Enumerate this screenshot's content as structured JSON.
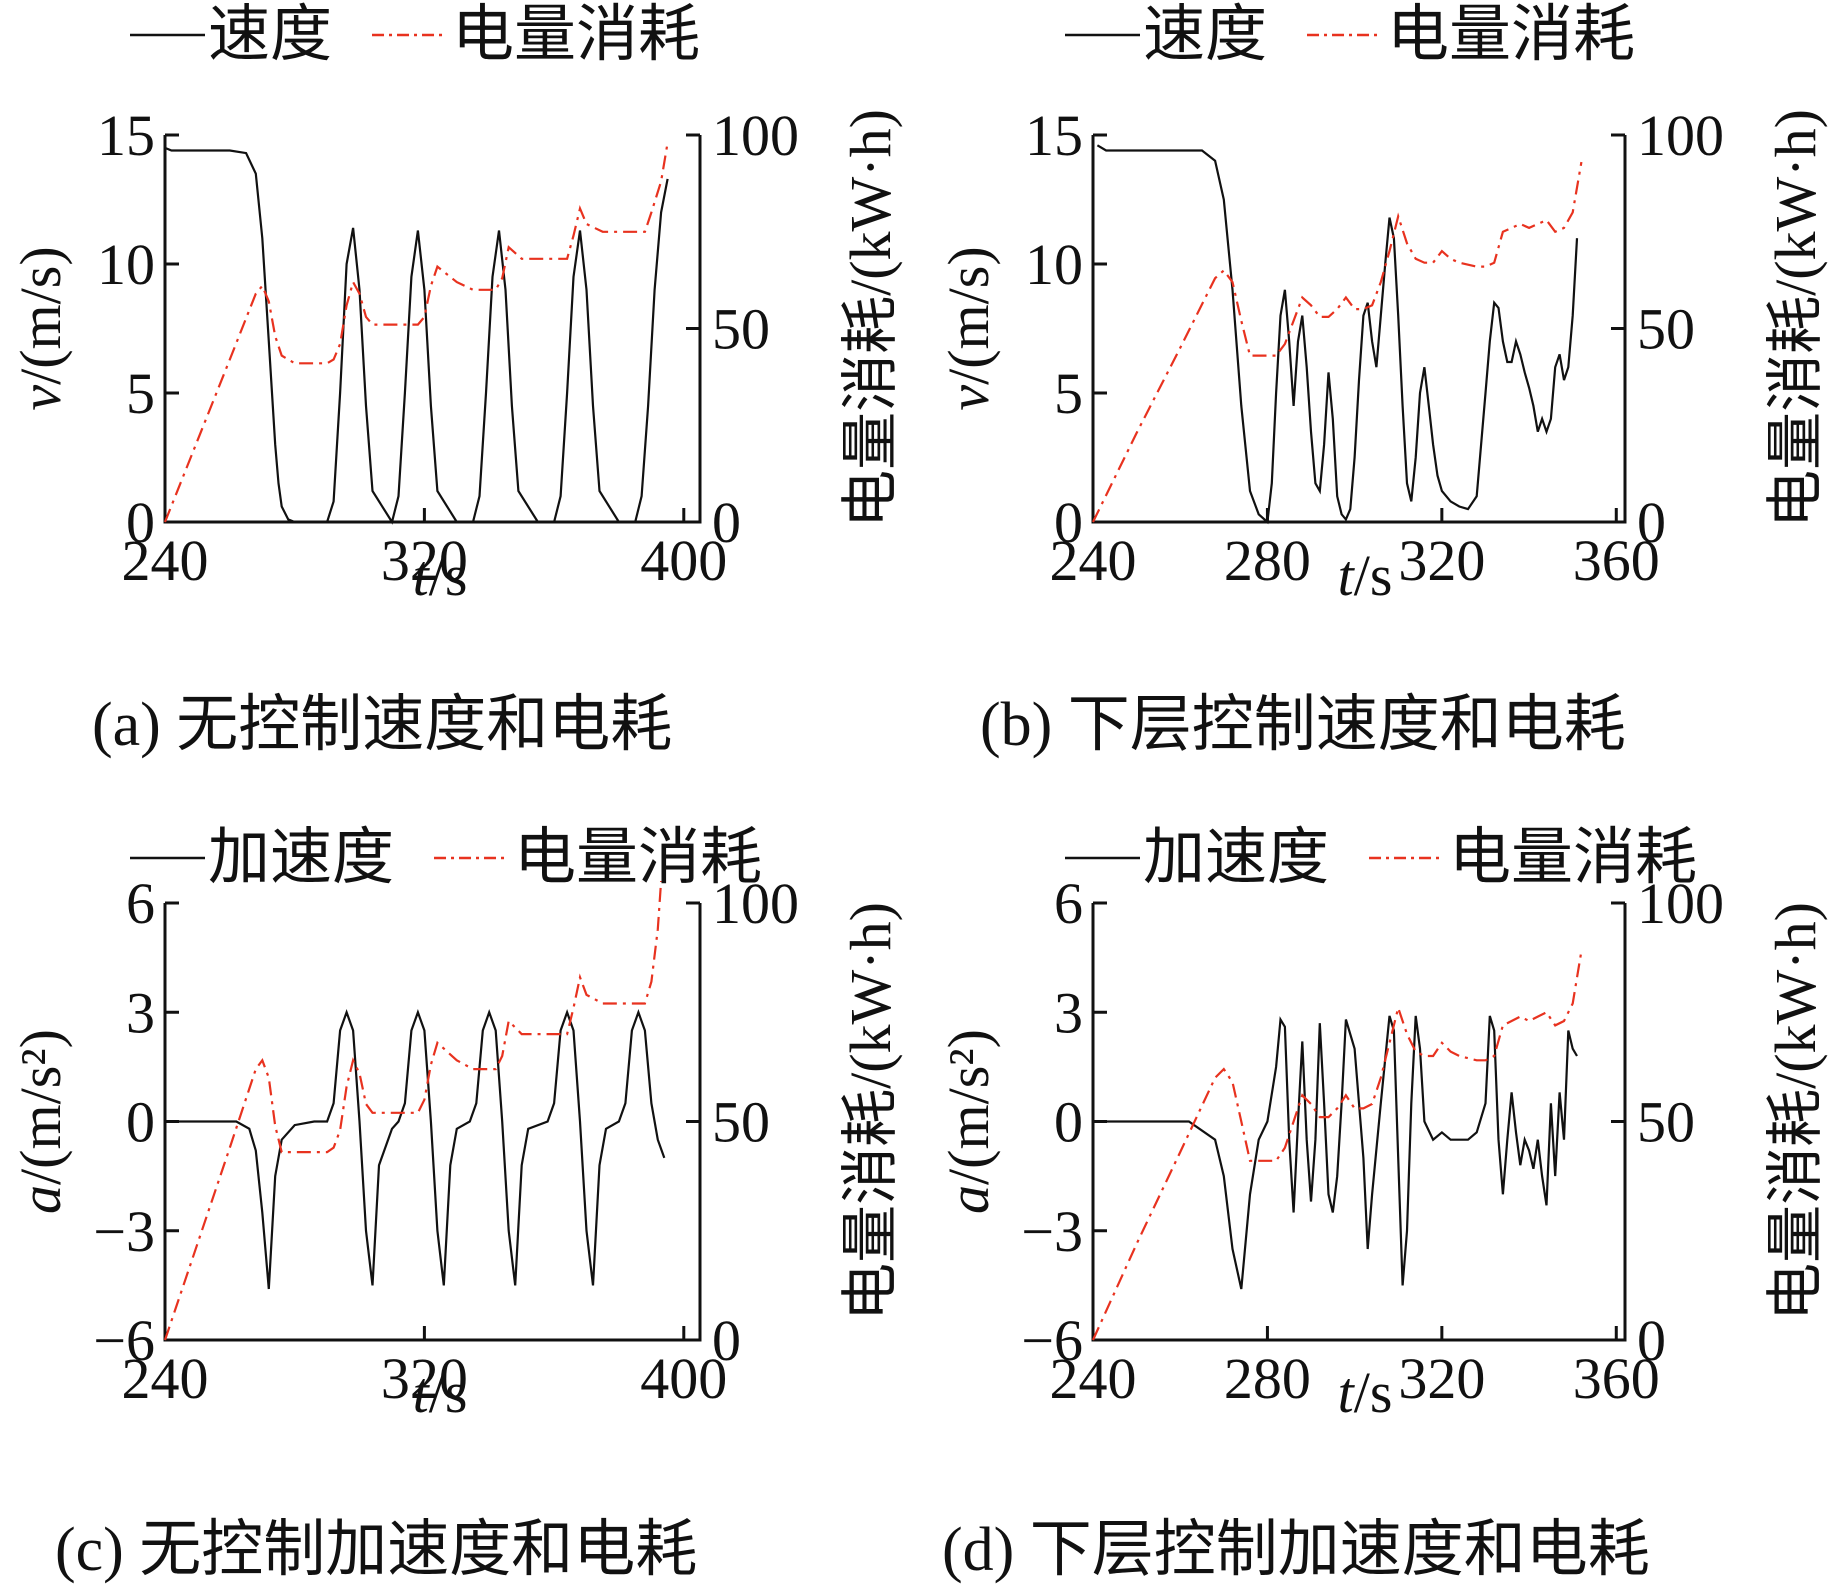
{
  "colors": {
    "speed": "#111111",
    "energy": "#e8321f"
  },
  "chart_data": [
    {
      "type": "line",
      "panel": "a",
      "caption": "(a) 无控制速度和电耗",
      "legend": [
        "速度",
        "电量消耗"
      ],
      "xlabel_var": "t",
      "xlabel_unit": "/s",
      "ylabel_var": "v",
      "ylabel_unit": "/(m/s)",
      "y2label": "电量消耗/(kW·h)",
      "xlim": [
        240,
        405
      ],
      "xticks": [
        240,
        320,
        400
      ],
      "ylim": [
        0,
        15
      ],
      "yticks": [
        0,
        5,
        10,
        15
      ],
      "y2lim": [
        0,
        100
      ],
      "y2ticks": [
        0,
        50,
        100
      ],
      "series": [
        {
          "name": "速度",
          "axis": "left",
          "x": [
            240,
            242,
            250,
            260,
            265,
            268,
            270,
            272,
            274,
            275,
            276,
            278,
            280,
            282,
            285,
            290,
            292,
            294,
            296,
            298,
            300,
            302,
            304,
            310,
            312,
            314,
            316,
            318,
            320,
            322,
            324,
            330,
            335,
            337,
            339,
            341,
            343,
            345,
            347,
            349,
            355,
            360,
            362,
            364,
            366,
            368,
            370,
            372,
            374,
            380,
            385,
            387,
            389,
            391,
            393,
            395
          ],
          "y": [
            14.5,
            14.4,
            14.4,
            14.4,
            14.3,
            13.5,
            11,
            7,
            3,
            1.5,
            0.6,
            0.1,
            0,
            0,
            0,
            0,
            0.8,
            5,
            10,
            11.4,
            9,
            4.5,
            1.2,
            0,
            1,
            5,
            9.5,
            11.3,
            9,
            4.5,
            1.2,
            0,
            0,
            1,
            5,
            9.5,
            11.3,
            9,
            4.5,
            1.2,
            0,
            0,
            1,
            5,
            9.5,
            11.3,
            9,
            4.5,
            1.2,
            0,
            0,
            1,
            4.5,
            9,
            12,
            13.3
          ]
        },
        {
          "name": "电量消耗",
          "axis": "right",
          "x": [
            240,
            250,
            260,
            268,
            270,
            272,
            274,
            276,
            280,
            285,
            288,
            290,
            292,
            294,
            296,
            298,
            300,
            302,
            304,
            310,
            315,
            318,
            320,
            322,
            324,
            330,
            335,
            340,
            342,
            344,
            346,
            350,
            355,
            360,
            364,
            366,
            368,
            370,
            375,
            380,
            385,
            388,
            390,
            393,
            395
          ],
          "y": [
            0,
            21,
            42,
            59,
            61,
            57,
            48,
            43,
            41,
            41,
            41,
            41,
            42,
            46,
            56,
            62,
            59,
            53,
            51,
            51,
            51,
            51,
            53,
            61,
            66,
            62,
            60,
            60,
            60,
            63,
            71,
            68,
            68,
            68,
            68,
            74,
            81,
            77,
            75,
            75,
            75,
            75,
            80,
            88,
            98
          ]
        }
      ]
    },
    {
      "type": "line",
      "panel": "b",
      "caption": "(b) 下层控制速度和电耗",
      "legend": [
        "速度",
        "电量消耗"
      ],
      "xlabel_var": "t",
      "xlabel_unit": "/s",
      "ylabel_var": "v",
      "ylabel_unit": "/(m/s)",
      "y2label": "电量消耗/(kW·h)",
      "xlim": [
        240,
        362
      ],
      "xticks": [
        240,
        280,
        320,
        360
      ],
      "ylim": [
        0,
        15
      ],
      "yticks": [
        0,
        5,
        10,
        15
      ],
      "y2lim": [
        0,
        100
      ],
      "y2ticks": [
        0,
        50,
        100
      ],
      "series": [
        {
          "name": "速度",
          "axis": "left",
          "x": [
            241,
            243,
            250,
            260,
            265,
            268,
            270,
            272,
            274,
            276,
            278,
            280,
            281,
            282,
            283,
            284,
            285,
            286,
            287,
            288,
            289,
            290,
            291,
            292,
            293,
            294,
            295,
            296,
            297,
            298,
            299,
            300,
            301,
            302,
            303,
            304,
            305,
            306,
            307,
            308,
            309,
            310,
            311,
            312,
            313,
            314,
            315,
            316,
            317,
            318,
            319,
            320,
            322,
            324,
            326,
            328,
            330,
            331,
            332,
            333,
            334,
            335,
            336,
            337,
            338,
            339,
            340,
            341,
            342,
            343,
            344,
            345,
            346,
            347,
            348,
            349,
            350,
            351
          ],
          "y": [
            14.6,
            14.4,
            14.4,
            14.4,
            14.4,
            14,
            12.5,
            9,
            4.5,
            1.2,
            0.3,
            0,
            1.5,
            5,
            8,
            9,
            7,
            4.5,
            7,
            8,
            6,
            3.5,
            1.5,
            1.2,
            3,
            5.8,
            4,
            1,
            0.3,
            0.1,
            0.5,
            2.5,
            5.5,
            8,
            8.5,
            7,
            6,
            8,
            10,
            11.8,
            11,
            8,
            4.5,
            1.5,
            0.8,
            2.5,
            5,
            6,
            4.5,
            3,
            1.8,
            1.2,
            0.8,
            0.6,
            0.5,
            1,
            5,
            7,
            8.5,
            8.3,
            7,
            6.2,
            6.2,
            7,
            6.5,
            5.8,
            5.2,
            4.5,
            3.5,
            4,
            3.5,
            4,
            6,
            6.5,
            5.5,
            6,
            8,
            11
          ]
        },
        {
          "name": "电量消耗",
          "axis": "right",
          "x": [
            240,
            250,
            260,
            268,
            270,
            272,
            274,
            276,
            278,
            282,
            284,
            286,
            288,
            290,
            292,
            294,
            296,
            298,
            300,
            302,
            304,
            306,
            308,
            310,
            312,
            314,
            316,
            318,
            320,
            322,
            324,
            328,
            330,
            332,
            334,
            336,
            338,
            340,
            342,
            344,
            346,
            348,
            350,
            352
          ],
          "y": [
            0,
            23,
            45,
            63,
            65,
            62,
            52,
            43,
            43,
            43,
            46,
            52,
            58,
            56,
            53,
            53,
            55,
            58,
            55,
            55,
            56,
            62,
            70,
            79,
            72,
            68,
            67,
            67,
            70,
            68,
            67,
            66,
            66,
            67,
            75,
            76,
            77,
            76,
            77,
            78,
            75,
            76,
            80,
            93
          ]
        }
      ]
    },
    {
      "type": "line",
      "panel": "c",
      "caption": "(c) 无控制加速度和电耗",
      "legend": [
        "加速度",
        "电量消耗"
      ],
      "xlabel_var": "t",
      "xlabel_unit": "/s",
      "ylabel_var": "a",
      "ylabel_unit": "/(m/s²)",
      "y2label": "电量消耗/(kW·h)",
      "xlim": [
        240,
        405
      ],
      "xticks": [
        240,
        320,
        400
      ],
      "ylim": [
        -6,
        6
      ],
      "yticks": [
        -6,
        -3,
        0,
        3,
        6
      ],
      "y2lim": [
        0,
        100
      ],
      "y2ticks": [
        0,
        50,
        100
      ],
      "series": [
        {
          "name": "加速度",
          "axis": "left",
          "x": [
            242,
            250,
            262,
            266,
            268,
            270,
            272,
            274,
            276,
            280,
            286,
            290,
            292,
            294,
            296,
            298,
            300,
            302,
            304,
            306,
            310,
            312,
            314,
            316,
            318,
            320,
            322,
            324,
            326,
            328,
            330,
            334,
            336,
            338,
            340,
            342,
            344,
            346,
            348,
            350,
            352,
            358,
            360,
            362,
            364,
            366,
            368,
            370,
            372,
            374,
            376,
            380,
            382,
            384,
            386,
            388,
            390,
            392,
            394
          ],
          "y": [
            0,
            0,
            0,
            -0.2,
            -0.8,
            -2.5,
            -4.6,
            -1.5,
            -0.5,
            -0.1,
            0,
            0,
            0.5,
            2.5,
            3,
            2.5,
            0,
            -3,
            -4.5,
            -1.2,
            -0.2,
            0,
            0.5,
            2.5,
            3,
            2.5,
            0,
            -3,
            -4.5,
            -1.2,
            -0.2,
            0,
            0.5,
            2.5,
            3,
            2.5,
            0,
            -3,
            -4.5,
            -1.2,
            -0.2,
            0,
            0.5,
            2.5,
            3,
            2.5,
            0,
            -3,
            -4.5,
            -1.2,
            -0.2,
            0,
            0.5,
            2.5,
            3,
            2.5,
            0.5,
            -0.5,
            -1
          ]
        },
        {
          "name": "电量消耗",
          "axis": "right",
          "x": [
            240,
            250,
            260,
            268,
            270,
            272,
            274,
            276,
            280,
            285,
            288,
            290,
            292,
            294,
            296,
            298,
            300,
            302,
            304,
            310,
            315,
            318,
            320,
            322,
            324,
            330,
            335,
            340,
            342,
            344,
            346,
            350,
            355,
            360,
            364,
            366,
            368,
            370,
            375,
            380,
            385,
            388,
            390,
            392,
            393
          ],
          "y": [
            0,
            22,
            44,
            62,
            64,
            60,
            49,
            43,
            43,
            43,
            43,
            43,
            44,
            48,
            58,
            64,
            61,
            54,
            52,
            52,
            52,
            52,
            55,
            63,
            68,
            64,
            62,
            62,
            62,
            65,
            73,
            70,
            70,
            70,
            70,
            76,
            83,
            79,
            77,
            77,
            77,
            77,
            82,
            94,
            105
          ]
        }
      ]
    },
    {
      "type": "line",
      "panel": "d",
      "caption": "(d) 下层控制加速度和电耗",
      "legend": [
        "加速度",
        "电量消耗"
      ],
      "xlabel_var": "t",
      "xlabel_unit": "/s",
      "ylabel_var": "a",
      "ylabel_unit": "/(m/s²)",
      "y2label": "电量消耗/(kW·h)",
      "xlim": [
        240,
        362
      ],
      "xticks": [
        240,
        280,
        320,
        360
      ],
      "ylim": [
        -6,
        6
      ],
      "yticks": [
        -6,
        -3,
        0,
        3,
        6
      ],
      "y2lim": [
        0,
        100
      ],
      "y2ticks": [
        0,
        50,
        100
      ],
      "series": [
        {
          "name": "加速度",
          "axis": "left",
          "x": [
            241,
            250,
            262,
            268,
            270,
            272,
            274,
            276,
            278,
            280,
            282,
            283,
            284,
            285,
            286,
            287,
            288,
            289,
            290,
            291,
            292,
            293,
            294,
            295,
            296,
            297,
            298,
            300,
            302,
            303,
            304,
            306,
            308,
            309,
            310,
            311,
            312,
            313,
            314,
            315,
            316,
            318,
            320,
            322,
            324,
            326,
            328,
            330,
            331,
            332,
            333,
            334,
            335,
            336,
            337,
            338,
            339,
            340,
            341,
            342,
            343,
            344,
            345,
            346,
            347,
            348,
            349,
            350,
            351
          ],
          "y": [
            0,
            0,
            0,
            -0.5,
            -1.5,
            -3.5,
            -4.6,
            -2,
            -0.5,
            0,
            1.5,
            2.8,
            2.6,
            -0.5,
            -2.5,
            0,
            2.2,
            -0.5,
            -2.2,
            -0.5,
            2.7,
            0.5,
            -2,
            -2.5,
            -1.5,
            0.5,
            2.8,
            2,
            -1,
            -3.5,
            -2,
            0.5,
            2.9,
            2.5,
            -1,
            -4.5,
            -3,
            0.5,
            2.9,
            2,
            0,
            -0.5,
            -0.3,
            -0.5,
            -0.5,
            -0.5,
            -0.3,
            0.5,
            2.9,
            2.5,
            -0.5,
            -2,
            -0.5,
            0.8,
            -0.3,
            -1.2,
            -0.5,
            -0.8,
            -1.3,
            -0.5,
            -1.5,
            -2.3,
            0.5,
            -1.5,
            0.8,
            -0.5,
            2.5,
            2,
            1.8
          ]
        },
        {
          "name": "电量消耗",
          "axis": "right",
          "x": [
            240,
            250,
            260,
            268,
            270,
            272,
            274,
            276,
            278,
            282,
            284,
            286,
            288,
            290,
            292,
            294,
            296,
            298,
            300,
            302,
            304,
            306,
            308,
            310,
            312,
            314,
            316,
            318,
            320,
            322,
            324,
            328,
            330,
            332,
            334,
            336,
            338,
            340,
            342,
            344,
            346,
            348,
            350,
            352
          ],
          "y": [
            0,
            22,
            43,
            60,
            62,
            59,
            50,
            41,
            41,
            41,
            44,
            50,
            56,
            54,
            51,
            51,
            53,
            56,
            53,
            53,
            54,
            60,
            68,
            76,
            70,
            66,
            65,
            65,
            68,
            66,
            65,
            64,
            64,
            65,
            72,
            73,
            74,
            73,
            74,
            75,
            72,
            73,
            77,
            89
          ]
        }
      ]
    }
  ]
}
